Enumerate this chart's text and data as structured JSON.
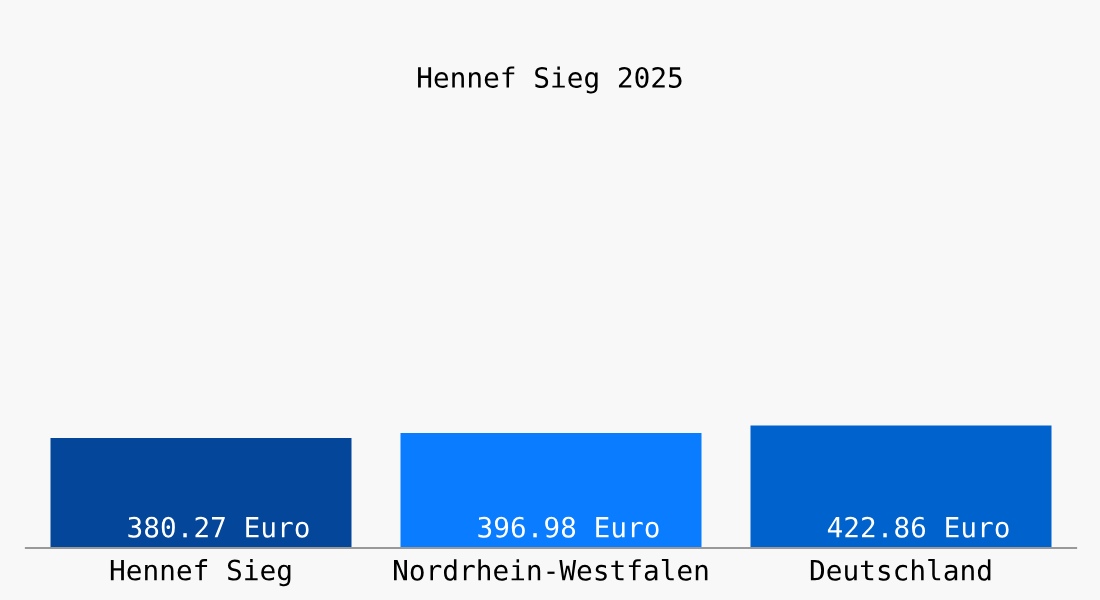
{
  "chart_data": {
    "type": "bar",
    "title": "Hennef Sieg 2025",
    "categories": [
      "Hennef Sieg",
      "Nordrhein-Westfalen",
      "Deutschland"
    ],
    "values": [
      380.27,
      396.98,
      422.86
    ],
    "colors": [
      "#03469a",
      "#0a7cff",
      "#0062cc"
    ],
    "value_labels": [
      "380.27 Euro",
      "396.98 Euro",
      "422.86 Euro"
    ],
    "grid": false,
    "legend": false
  }
}
